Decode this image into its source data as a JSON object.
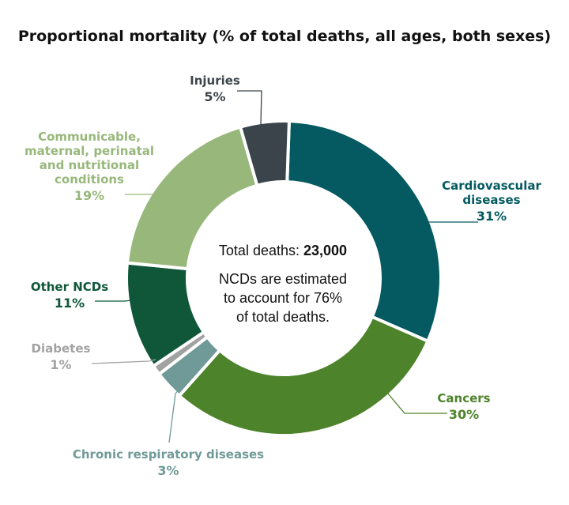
{
  "chart_data": {
    "type": "pie",
    "donut": true,
    "title": "Proportional mortality (% of total deaths, all ages, both sexes)",
    "center_text": {
      "total_label": "Total deaths: ",
      "total_value": "23,000",
      "note_lines": [
        "NCDs are estimated",
        "to account for 76%",
        "of total deaths."
      ]
    },
    "slices": [
      {
        "label_lines": [
          "Cardiovascular",
          "diseases"
        ],
        "value": 31,
        "pct_label": "31%",
        "color": "#045a60"
      },
      {
        "label_lines": [
          "Cancers"
        ],
        "value": 30,
        "pct_label": "30%",
        "color": "#4d832a"
      },
      {
        "label_lines": [
          "Chronic respiratory diseases"
        ],
        "value": 3,
        "pct_label": "3%",
        "color": "#6f9a98"
      },
      {
        "label_lines": [
          "Diabetes"
        ],
        "value": 1,
        "pct_label": "1%",
        "color": "#a2a2a2"
      },
      {
        "label_lines": [
          "Other NCDs"
        ],
        "value": 11,
        "pct_label": "11%",
        "color": "#10573a"
      },
      {
        "label_lines": [
          "Communicable,",
          "maternal, perinatal",
          "and nutritional",
          "conditions"
        ],
        "value": 19,
        "pct_label": "19%",
        "color": "#98b87b"
      },
      {
        "label_lines": [
          "Injuries"
        ],
        "value": 5,
        "pct_label": "5%",
        "color": "#3c444b"
      }
    ]
  }
}
